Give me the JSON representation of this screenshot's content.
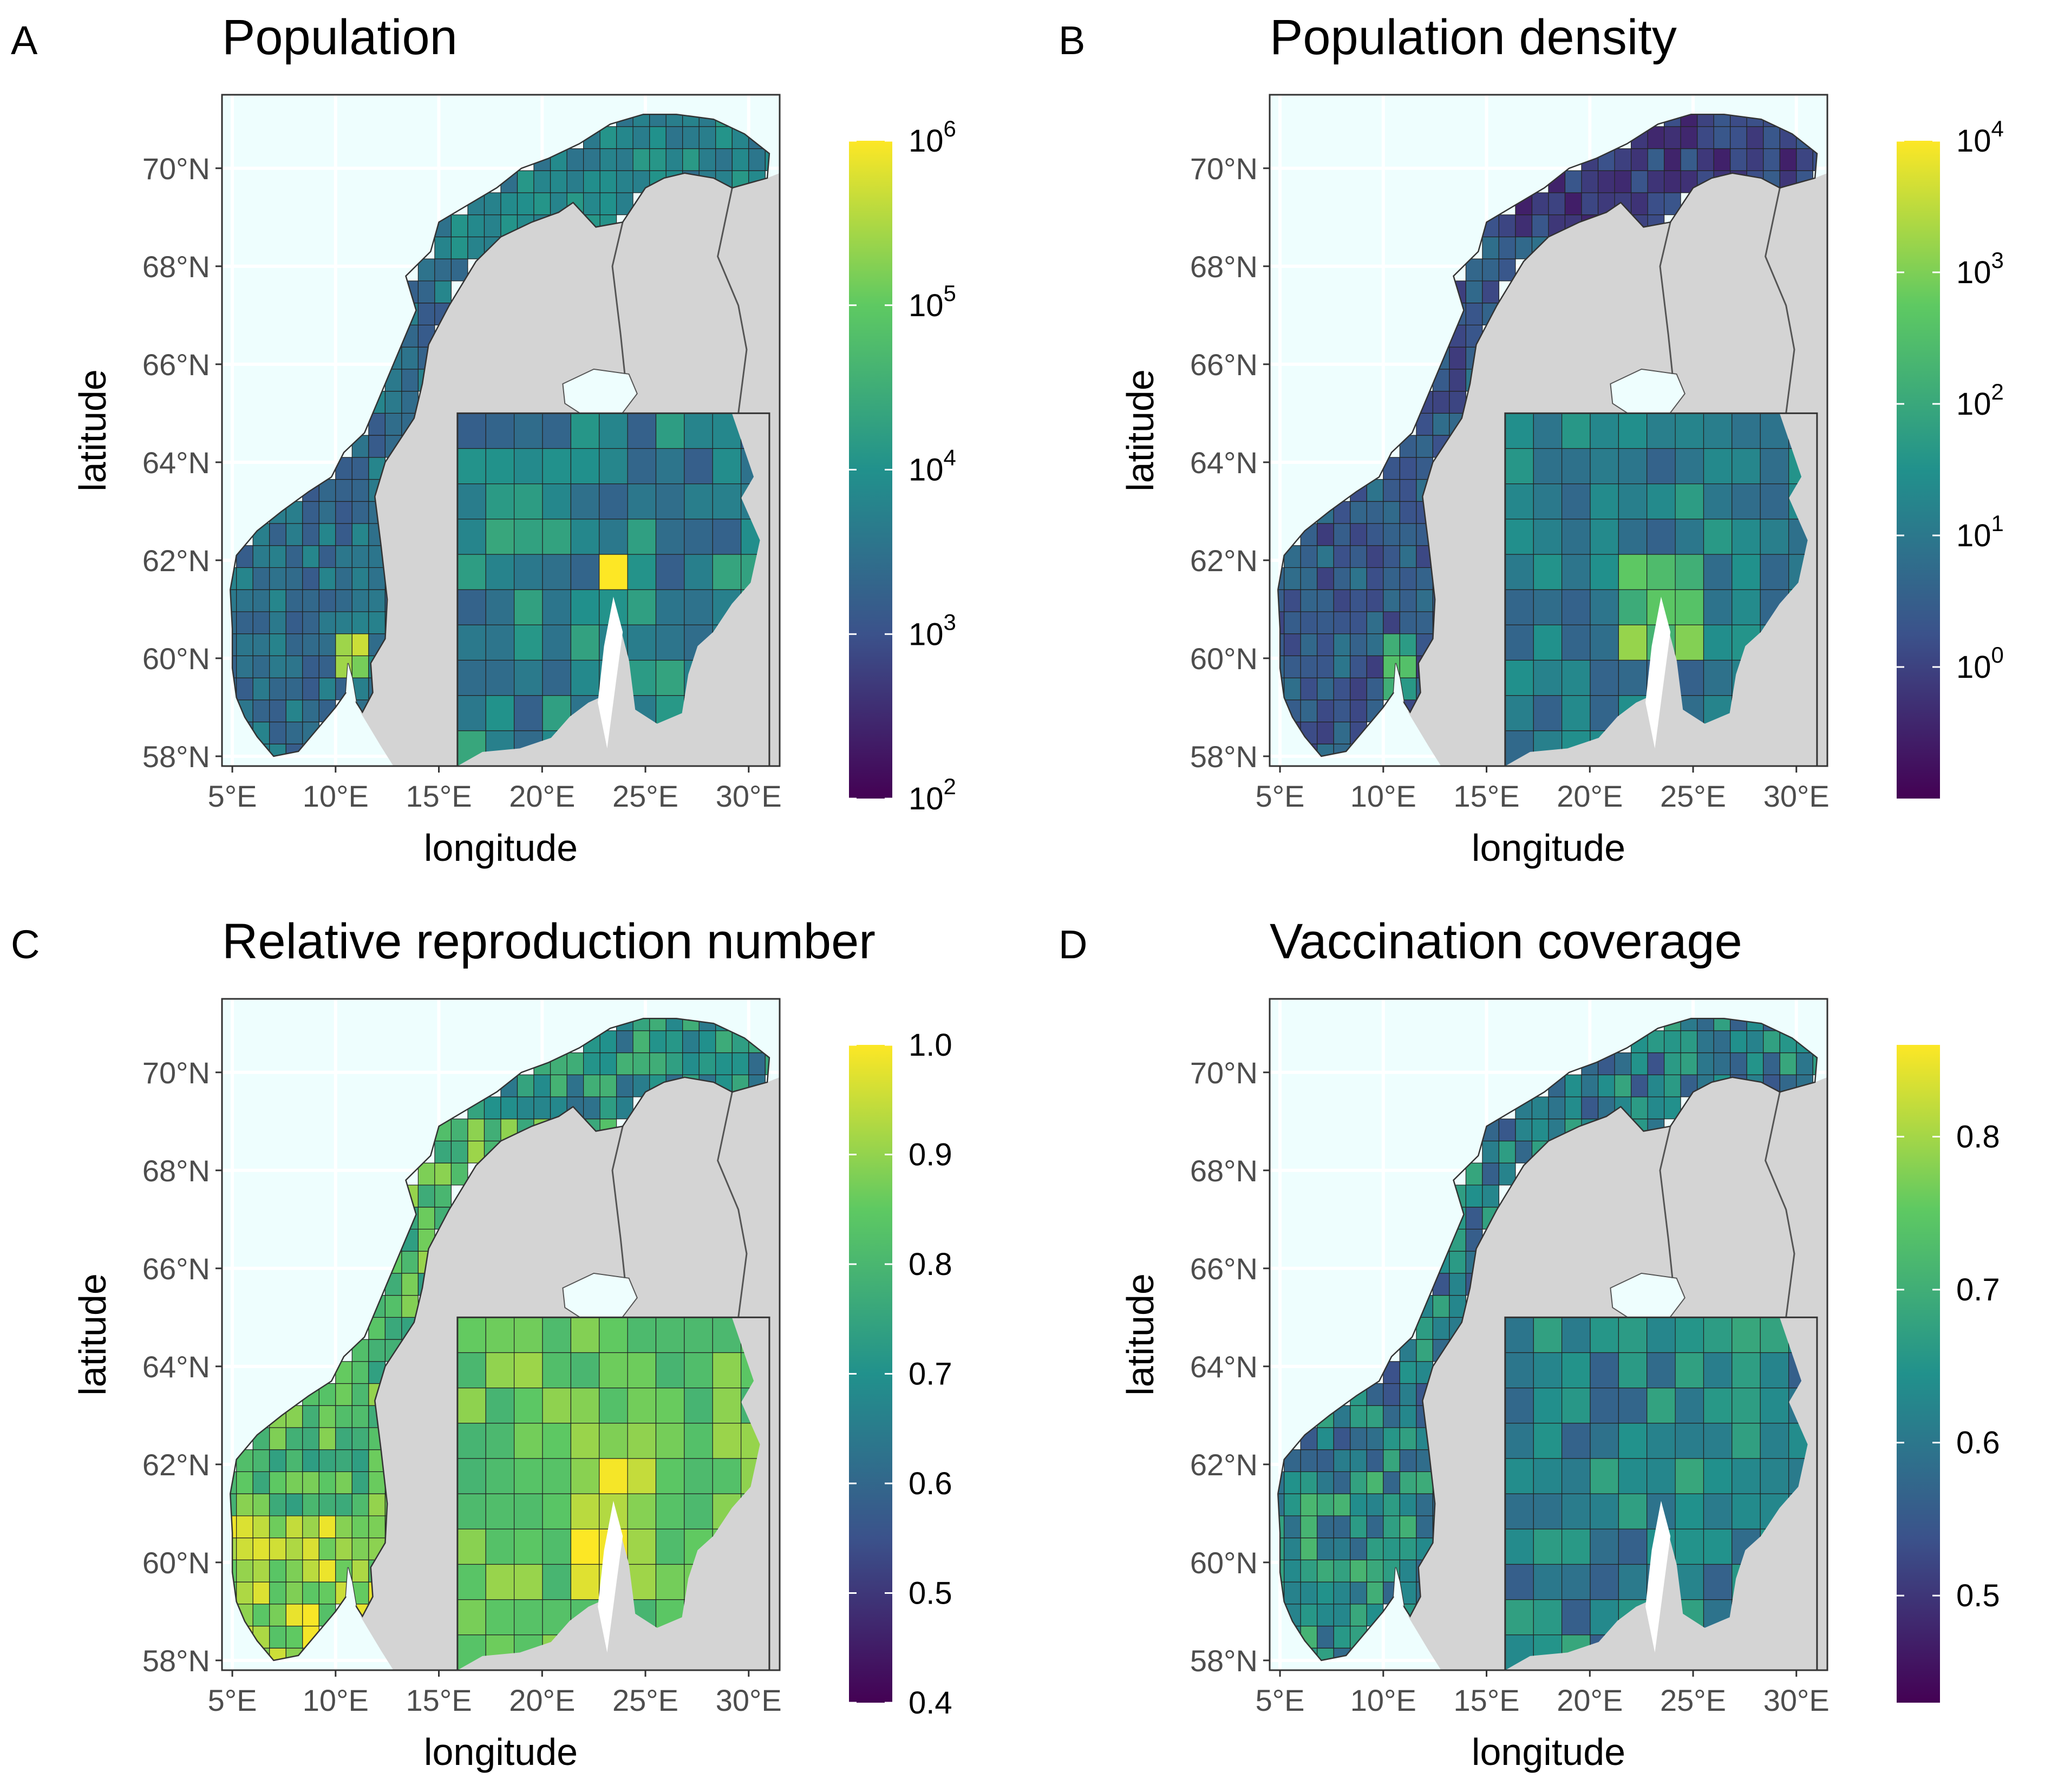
{
  "axes": {
    "xlabel": "longitude",
    "ylabel": "latitude",
    "xticks": [
      "5°E",
      "10°E",
      "15°E",
      "20°E",
      "25°E",
      "30°E"
    ],
    "yticks": [
      "70°N",
      "68°N",
      "66°N",
      "64°N",
      "62°N",
      "60°N",
      "58°N"
    ],
    "xlim": [
      4.5,
      31.5
    ],
    "ylim": [
      57.8,
      71.5
    ]
  },
  "chart_data": [
    {
      "type": "choropleth-map",
      "panel": "A",
      "title": "Population",
      "colorbar": {
        "scale": "log",
        "range": [
          100,
          1000000
        ],
        "ticks": [
          {
            "base": "10",
            "exp": "6",
            "value": 1000000
          },
          {
            "base": "10",
            "exp": "5",
            "value": 100000
          },
          {
            "base": "10",
            "exp": "4",
            "value": 10000
          },
          {
            "base": "10",
            "exp": "3",
            "value": 1000
          },
          {
            "base": "10",
            "exp": "2",
            "value": 100
          }
        ]
      },
      "inset": true
    },
    {
      "type": "choropleth-map",
      "panel": "B",
      "title": "Population density",
      "colorbar": {
        "scale": "log",
        "range": [
          0.1,
          10000
        ],
        "ticks": [
          {
            "base": "10",
            "exp": "4",
            "value": 10000
          },
          {
            "base": "10",
            "exp": "3",
            "value": 1000
          },
          {
            "base": "10",
            "exp": "2",
            "value": 100
          },
          {
            "base": "10",
            "exp": "1",
            "value": 10
          },
          {
            "base": "10",
            "exp": "0",
            "value": 1
          }
        ]
      },
      "inset": true
    },
    {
      "type": "choropleth-map",
      "panel": "C",
      "title": "Relative reproduction number",
      "colorbar": {
        "scale": "linear",
        "range": [
          0.4,
          1.0
        ],
        "ticks": [
          {
            "label": "1.0",
            "value": 1.0
          },
          {
            "label": "0.9",
            "value": 0.9
          },
          {
            "label": "0.8",
            "value": 0.8
          },
          {
            "label": "0.7",
            "value": 0.7
          },
          {
            "label": "0.6",
            "value": 0.6
          },
          {
            "label": "0.5",
            "value": 0.5
          },
          {
            "label": "0.4",
            "value": 0.4
          }
        ]
      },
      "inset": true
    },
    {
      "type": "choropleth-map",
      "panel": "D",
      "title": "Vaccination coverage",
      "colorbar": {
        "scale": "linear",
        "range": [
          0.43,
          0.86
        ],
        "ticks": [
          {
            "label": "0.8",
            "value": 0.8
          },
          {
            "label": "0.7",
            "value": 0.7
          },
          {
            "label": "0.6",
            "value": 0.6
          },
          {
            "label": "0.5",
            "value": 0.5
          }
        ]
      },
      "inset": true
    }
  ],
  "colors": {
    "sea": "#eefefe",
    "land": "#d4d4d4",
    "grid": "#e6e6e6",
    "viridis": [
      "#440154",
      "#3b528b",
      "#21918c",
      "#5ec962",
      "#fde725"
    ]
  }
}
